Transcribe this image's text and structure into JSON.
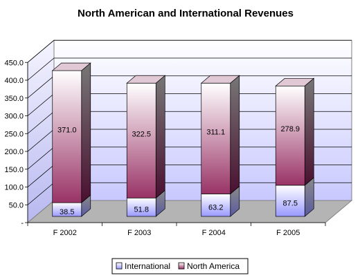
{
  "chart_data": {
    "type": "bar",
    "stacked": true,
    "three_d": true,
    "title": "North American and International Revenues",
    "categories": [
      "F 2002",
      "F 2003",
      "F 2004",
      "F 2005"
    ],
    "series": [
      {
        "name": "International",
        "values": [
          38.5,
          51.8,
          63.2,
          87.5
        ],
        "color": "#9999ff"
      },
      {
        "name": "North America",
        "values": [
          371.0,
          322.5,
          311.1,
          278.9
        ],
        "color": "#993366"
      }
    ],
    "data_labels": [
      [
        "38.5",
        "51.8",
        "63.2",
        "87.5"
      ],
      [
        "371.0",
        "322.5",
        "311.1",
        "278.9"
      ]
    ],
    "y_ticks": [
      "-",
      "50.0",
      "100.0",
      "150.0",
      "200.0",
      "250.0",
      "300.0",
      "350.0",
      "400.0",
      "450.0"
    ],
    "ylim": [
      0,
      450
    ],
    "grid": true,
    "legend_position": "bottom",
    "xlabel": "",
    "ylabel": ""
  }
}
